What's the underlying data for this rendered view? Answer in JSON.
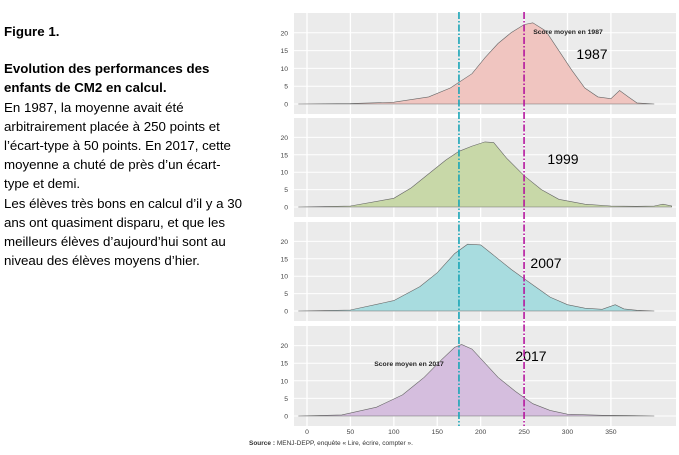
{
  "caption": {
    "figure_label": "Figure 1.",
    "heading": "Evolution des performances des enfants de CM2 en calcul.",
    "paragraph_1": "En 1987, la moyenne avait été arbitrairement placée à 250 points et l’écart-type à 50 points. En 2017, cette moyenne a chuté de près d’un écart-type et demi.",
    "paragraph_2": "Les élèves très bons en calcul d’il y a 30 ans ont quasiment disparu, et que les meilleurs élèves d’aujourd’hui sont au niveau des élèves moyens d’hier."
  },
  "source": {
    "label": "Source :",
    "text": "MENJ-DEPP, enquête « Lire, écrire, compter »."
  },
  "chart_data": {
    "type": "area",
    "layout": "ridgeline",
    "xlim": [
      -15,
      425
    ],
    "ylim": [
      0,
      25
    ],
    "x_ticks": [
      0,
      50,
      100,
      150,
      200,
      250,
      300,
      350
    ],
    "y_ticks": [
      0,
      5,
      10,
      15,
      20
    ],
    "reference_lines": [
      {
        "x": 175,
        "color": "#1aa6b7",
        "style": "dash-dot"
      },
      {
        "x": 250,
        "color": "#b5179e",
        "style": "dash-dot"
      }
    ],
    "colors": {
      "background": "#ebebeb",
      "grid": "#ffffff",
      "outline": "#666666"
    },
    "series": [
      {
        "name": "1987",
        "fill": "#f0c5c0",
        "points": [
          [
            -10,
            0
          ],
          [
            50,
            0.1
          ],
          [
            100,
            0.5
          ],
          [
            140,
            2
          ],
          [
            165,
            4.5
          ],
          [
            190,
            8.5
          ],
          [
            205,
            13
          ],
          [
            220,
            17
          ],
          [
            235,
            20
          ],
          [
            250,
            22.3
          ],
          [
            260,
            22.8
          ],
          [
            275,
            20.5
          ],
          [
            290,
            15
          ],
          [
            305,
            9.5
          ],
          [
            320,
            4.5
          ],
          [
            335,
            2
          ],
          [
            350,
            1.5
          ],
          [
            360,
            3.8
          ],
          [
            370,
            2
          ],
          [
            380,
            0.3
          ],
          [
            400,
            0
          ]
        ],
        "annotation": "Score moyen en 1987"
      },
      {
        "name": "1999",
        "fill": "#c8d8a8",
        "points": [
          [
            -10,
            0
          ],
          [
            50,
            0.3
          ],
          [
            100,
            2.5
          ],
          [
            120,
            5.5
          ],
          [
            140,
            9.5
          ],
          [
            160,
            13.5
          ],
          [
            175,
            16
          ],
          [
            190,
            17.5
          ],
          [
            205,
            18.7
          ],
          [
            215,
            18.5
          ],
          [
            230,
            14
          ],
          [
            250,
            9
          ],
          [
            270,
            5
          ],
          [
            290,
            2.2
          ],
          [
            320,
            0.8
          ],
          [
            350,
            0.3
          ],
          [
            380,
            0.2
          ],
          [
            400,
            0.3
          ],
          [
            410,
            0.8
          ],
          [
            420,
            0.3
          ]
        ]
      },
      {
        "name": "2007",
        "fill": "#a8dcdf",
        "points": [
          [
            -10,
            0
          ],
          [
            50,
            0.3
          ],
          [
            100,
            3
          ],
          [
            130,
            7
          ],
          [
            150,
            11
          ],
          [
            170,
            16.5
          ],
          [
            185,
            19.2
          ],
          [
            200,
            19
          ],
          [
            215,
            16
          ],
          [
            235,
            12
          ],
          [
            260,
            7.5
          ],
          [
            280,
            4
          ],
          [
            300,
            1.8
          ],
          [
            320,
            0.8
          ],
          [
            340,
            0.5
          ],
          [
            355,
            1.8
          ],
          [
            365,
            0.6
          ],
          [
            380,
            0.2
          ],
          [
            400,
            0
          ]
        ]
      },
      {
        "name": "2017",
        "fill": "#d5bede",
        "points": [
          [
            -10,
            0
          ],
          [
            40,
            0.3
          ],
          [
            80,
            2.5
          ],
          [
            110,
            6
          ],
          [
            135,
            11
          ],
          [
            155,
            16
          ],
          [
            170,
            19.5
          ],
          [
            178,
            20.3
          ],
          [
            190,
            19
          ],
          [
            205,
            15
          ],
          [
            220,
            11
          ],
          [
            240,
            7
          ],
          [
            260,
            3.5
          ],
          [
            280,
            1.6
          ],
          [
            300,
            0.5
          ],
          [
            340,
            0.2
          ],
          [
            370,
            0.1
          ],
          [
            400,
            0
          ]
        ],
        "annotation": "Score moyen en 2017"
      }
    ]
  }
}
